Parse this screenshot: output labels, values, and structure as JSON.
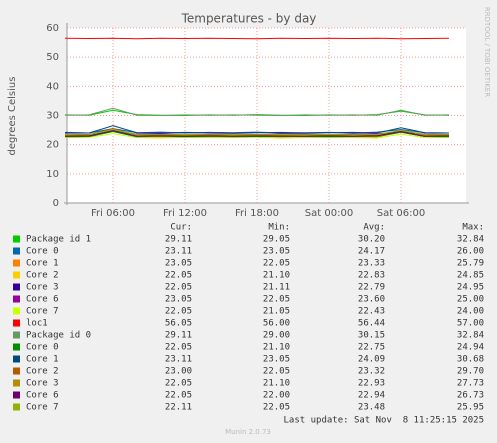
{
  "chart_data": {
    "type": "line",
    "title": "Temperatures - by day",
    "y_label": "degrees Celsius",
    "side_text": "RRDTOOL / TOBI OETIKER",
    "categories": [
      null,
      null,
      "Fri 06:00",
      null,
      null,
      "Fri 12:00",
      null,
      null,
      "Fri 18:00",
      null,
      null,
      "Sat 00:00",
      null,
      null,
      "Sat 06:00",
      null,
      null
    ],
    "ylim": [
      0,
      60
    ],
    "yticks": [
      0,
      10,
      20,
      30,
      40,
      50,
      60
    ],
    "grid": true,
    "legend_headers": [
      "Cur:",
      "Min:",
      "Avg:",
      "Max:"
    ],
    "series": [
      {
        "name": "Package id 1",
        "color": "#00cc00",
        "values": [
          30.2,
          30.1,
          31.8,
          30.3,
          30.1,
          30.0,
          30.2,
          30.1,
          30.3,
          30.1,
          30.0,
          30.2,
          30.1,
          30.3,
          31.5,
          30.2,
          30.1
        ],
        "stats": [
          "29.11",
          "29.05",
          "30.20",
          "32.84"
        ]
      },
      {
        "name": "Core 0",
        "color": "#0066b3",
        "values": [
          24.2,
          24.0,
          25.5,
          24.1,
          24.3,
          24.0,
          24.2,
          24.1,
          24.3,
          24.0,
          24.1,
          24.2,
          24.0,
          24.3,
          25.2,
          24.1,
          24.0
        ],
        "stats": [
          "23.11",
          "23.05",
          "24.17",
          "26.00"
        ]
      },
      {
        "name": "Core 1",
        "color": "#ff8000",
        "values": [
          23.3,
          23.2,
          25.0,
          23.4,
          23.3,
          23.2,
          23.4,
          23.3,
          23.2,
          23.4,
          23.3,
          23.2,
          23.3,
          23.4,
          24.8,
          23.3,
          23.2
        ],
        "stats": [
          "23.05",
          "22.05",
          "23.33",
          "25.79"
        ]
      },
      {
        "name": "Core 2",
        "color": "#ffcc00",
        "values": [
          22.8,
          22.9,
          24.5,
          22.8,
          22.7,
          22.9,
          22.8,
          22.8,
          22.9,
          22.7,
          22.8,
          22.9,
          22.8,
          22.7,
          24.2,
          22.8,
          22.9
        ],
        "stats": [
          "22.05",
          "21.10",
          "22.83",
          "24.85"
        ]
      },
      {
        "name": "Core 3",
        "color": "#330099",
        "values": [
          22.8,
          22.7,
          24.6,
          22.8,
          22.9,
          22.7,
          22.8,
          22.8,
          22.7,
          22.9,
          22.8,
          22.7,
          22.8,
          22.9,
          24.3,
          22.8,
          22.7
        ],
        "stats": [
          "22.05",
          "21.11",
          "22.79",
          "24.95"
        ]
      },
      {
        "name": "Core 6",
        "color": "#990099",
        "values": [
          23.6,
          23.5,
          24.8,
          23.6,
          23.7,
          23.5,
          23.6,
          23.6,
          23.5,
          23.7,
          23.6,
          23.5,
          23.6,
          23.7,
          24.5,
          23.6,
          23.5
        ],
        "stats": [
          "23.05",
          "22.05",
          "23.60",
          "25.00"
        ]
      },
      {
        "name": "Core 7",
        "color": "#ccff00",
        "values": [
          22.4,
          22.5,
          23.8,
          22.4,
          22.3,
          22.5,
          22.4,
          22.4,
          22.5,
          22.3,
          22.4,
          22.5,
          22.4,
          22.3,
          23.6,
          22.4,
          22.5
        ],
        "stats": [
          "22.05",
          "21.05",
          "22.43",
          "24.00"
        ]
      },
      {
        "name": "loc1",
        "color": "#ff0000",
        "values": [
          56.5,
          56.4,
          56.5,
          56.3,
          56.5,
          56.4,
          56.5,
          56.4,
          56.3,
          56.5,
          56.4,
          56.5,
          56.4,
          56.5,
          56.3,
          56.4,
          56.5
        ],
        "stats": [
          "56.05",
          "56.00",
          "56.44",
          "57.00"
        ]
      },
      {
        "name": "Package id 0",
        "color": "#669966",
        "values": [
          30.1,
          30.2,
          32.5,
          30.1,
          30.0,
          30.2,
          30.1,
          30.2,
          30.1,
          30.0,
          30.2,
          30.1,
          30.2,
          30.1,
          31.8,
          30.1,
          30.2
        ],
        "stats": [
          "29.11",
          "29.00",
          "30.15",
          "32.84"
        ]
      },
      {
        "name": "Core 0",
        "color": "#008f00",
        "values": [
          22.7,
          22.8,
          24.5,
          22.7,
          22.8,
          22.7,
          22.8,
          22.7,
          22.8,
          22.7,
          22.8,
          22.7,
          22.8,
          22.7,
          24.3,
          22.8,
          22.7
        ],
        "stats": [
          "22.05",
          "21.10",
          "22.75",
          "24.94"
        ]
      },
      {
        "name": "Core 1",
        "color": "#00487d",
        "values": [
          24.1,
          24.0,
          26.5,
          24.1,
          24.0,
          24.2,
          24.1,
          24.0,
          24.1,
          24.2,
          24.0,
          24.1,
          24.2,
          24.0,
          25.8,
          24.1,
          24.0
        ],
        "stats": [
          "23.11",
          "23.05",
          "24.09",
          "30.68"
        ]
      },
      {
        "name": "Core 2",
        "color": "#b35a00",
        "values": [
          23.3,
          23.4,
          25.5,
          23.3,
          23.2,
          23.4,
          23.3,
          23.3,
          23.4,
          23.2,
          23.3,
          23.4,
          23.3,
          23.2,
          25.0,
          23.3,
          23.4
        ],
        "stats": [
          "23.00",
          "22.05",
          "23.32",
          "29.70"
        ]
      },
      {
        "name": "Core 3",
        "color": "#b38f00",
        "values": [
          22.9,
          23.0,
          25.0,
          22.9,
          22.8,
          23.0,
          22.9,
          22.9,
          23.0,
          22.8,
          22.9,
          23.0,
          22.9,
          22.8,
          24.6,
          22.9,
          23.0
        ],
        "stats": [
          "22.05",
          "21.10",
          "22.93",
          "27.73"
        ]
      },
      {
        "name": "Core 6",
        "color": "#6b006b",
        "values": [
          22.9,
          23.0,
          24.8,
          22.9,
          23.0,
          22.9,
          23.0,
          22.9,
          23.0,
          22.9,
          22.9,
          23.0,
          22.9,
          23.0,
          24.5,
          22.9,
          23.0
        ],
        "stats": [
          "22.05",
          "22.00",
          "22.94",
          "26.73"
        ]
      },
      {
        "name": "Core 7",
        "color": "#8fb300",
        "values": [
          23.5,
          23.4,
          25.2,
          23.5,
          23.4,
          23.5,
          23.4,
          23.5,
          23.4,
          23.5,
          23.4,
          23.5,
          23.4,
          23.5,
          24.9,
          23.5,
          23.4
        ],
        "stats": [
          "22.11",
          "22.05",
          "23.48",
          "25.95"
        ]
      }
    ],
    "last_update": "Last update: Sat Nov  8 11:25:15 2025",
    "footer": "Munin 2.0.73"
  }
}
